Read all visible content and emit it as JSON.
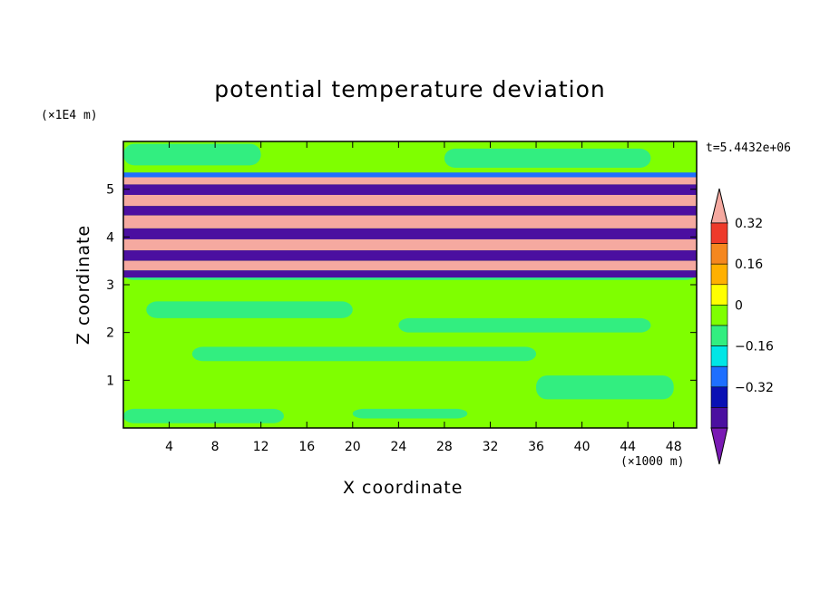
{
  "chart_data": {
    "type": "heatmap",
    "title": "potential temperature deviation",
    "xlabel": "X coordinate",
    "ylabel": "Z coordinate",
    "x_unit": "(×1000 m)",
    "y_unit": "(×1E4 m)",
    "time_label": "t=5.4432e+06",
    "xlim": [
      0,
      50
    ],
    "ylim": [
      0,
      6
    ],
    "x_ticks": [
      "4",
      "8",
      "12",
      "16",
      "20",
      "24",
      "28",
      "32",
      "36",
      "40",
      "44",
      "48"
    ],
    "y_ticks": [
      "1",
      "2",
      "3",
      "4",
      "5"
    ],
    "colorbar": {
      "labels": [
        "0.32",
        "0.16",
        "0",
        "−0.16",
        "−0.32"
      ],
      "label_values": [
        0.32,
        0.16,
        0,
        -0.16,
        -0.32
      ],
      "levels_high_to_low": [
        0.4,
        0.32,
        0.24,
        0.16,
        0.08,
        0,
        -0.08,
        -0.16,
        -0.24,
        -0.32,
        -0.4
      ],
      "colors_high_to_low": [
        "#f5a9a0",
        "#ee3a2a",
        "#f5871f",
        "#ffb000",
        "#ffff00",
        "#7fff00",
        "#32ee80",
        "#00e6e6",
        "#1e6fff",
        "#0a10b4",
        "#4b0fa0",
        "#7a1ab4"
      ]
    },
    "bands": [
      {
        "z": [
          5.25,
          5.35
        ],
        "value": -0.24
      },
      {
        "z": [
          5.1,
          5.25
        ],
        "value": 0.4
      },
      {
        "z": [
          4.88,
          5.1
        ],
        "value": -0.4
      },
      {
        "z": [
          4.65,
          4.88
        ],
        "value": 0.4
      },
      {
        "z": [
          4.45,
          4.65
        ],
        "value": -0.4
      },
      {
        "z": [
          4.18,
          4.45
        ],
        "value": 0.4
      },
      {
        "z": [
          3.95,
          4.18
        ],
        "value": -0.4
      },
      {
        "z": [
          3.72,
          3.95
        ],
        "value": 0.4
      },
      {
        "z": [
          3.5,
          3.72
        ],
        "value": -0.4
      },
      {
        "z": [
          3.3,
          3.5
        ],
        "value": 0.4
      },
      {
        "z": [
          3.15,
          3.3
        ],
        "value": -0.4
      }
    ]
  }
}
